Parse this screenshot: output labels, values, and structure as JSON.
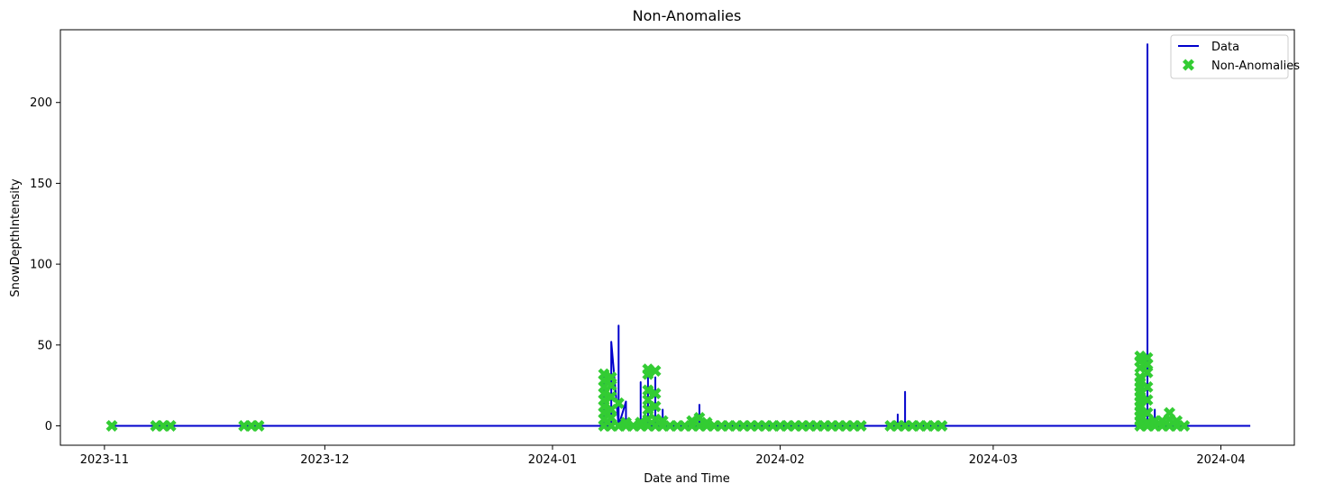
{
  "chart_data": {
    "type": "line",
    "title": "Non-Anomalies",
    "xlabel": "Date and Time",
    "ylabel": "SnowDepthIntensity",
    "x_axis_type": "date",
    "xlim": [
      "2023-10-26",
      "2024-04-11"
    ],
    "ylim": [
      -12,
      245
    ],
    "x_ticks": [
      "2023-11",
      "2023-12",
      "2024-01",
      "2024-02",
      "2024-03",
      "2024-04"
    ],
    "y_ticks": [
      0,
      50,
      100,
      150,
      200
    ],
    "grid": false,
    "legend": {
      "position": "top-right",
      "entries": [
        "Data",
        "Non-Anomalies"
      ]
    },
    "series": [
      {
        "name": "Data",
        "kind": "line",
        "color": "#0000cc",
        "points": [
          [
            "2023-11-02",
            0
          ],
          [
            "2024-01-08",
            0
          ],
          [
            "2024-01-08",
            30
          ],
          [
            "2024-01-08",
            0
          ],
          [
            "2024-01-09",
            0
          ],
          [
            "2024-01-09",
            35
          ],
          [
            "2024-01-09",
            0
          ],
          [
            "2024-01-09",
            45
          ],
          [
            "2024-01-09",
            0
          ],
          [
            "2024-01-09",
            52
          ],
          [
            "2024-01-10",
            0
          ],
          [
            "2024-01-10",
            62
          ],
          [
            "2024-01-10",
            0
          ],
          [
            "2024-01-10",
            45
          ],
          [
            "2024-01-10",
            0
          ],
          [
            "2024-01-11",
            15
          ],
          [
            "2024-01-11",
            0
          ],
          [
            "2024-01-13",
            0
          ],
          [
            "2024-01-13",
            27
          ],
          [
            "2024-01-13",
            0
          ],
          [
            "2024-01-14",
            0
          ],
          [
            "2024-01-14",
            35
          ],
          [
            "2024-01-14",
            0
          ],
          [
            "2024-01-15",
            0
          ],
          [
            "2024-01-15",
            30
          ],
          [
            "2024-01-15",
            0
          ],
          [
            "2024-01-16",
            0
          ],
          [
            "2024-01-16",
            10
          ],
          [
            "2024-01-16",
            0
          ],
          [
            "2024-01-21",
            0
          ],
          [
            "2024-01-21",
            13
          ],
          [
            "2024-01-21",
            0
          ],
          [
            "2024-02-17",
            0
          ],
          [
            "2024-02-17",
            7
          ],
          [
            "2024-02-17",
            0
          ],
          [
            "2024-02-18",
            0
          ],
          [
            "2024-02-18",
            21
          ],
          [
            "2024-02-18",
            0
          ],
          [
            "2024-03-21",
            0
          ],
          [
            "2024-03-21",
            25
          ],
          [
            "2024-03-21",
            0
          ],
          [
            "2024-03-22",
            0
          ],
          [
            "2024-03-22",
            236
          ],
          [
            "2024-03-22",
            0
          ],
          [
            "2024-03-23",
            0
          ],
          [
            "2024-03-23",
            10
          ],
          [
            "2024-03-23",
            0
          ],
          [
            "2024-04-05",
            0
          ]
        ]
      },
      {
        "name": "Non-Anomalies",
        "kind": "scatter",
        "marker": "X",
        "color": "#33cc33",
        "points": [
          [
            "2023-11-02",
            0
          ],
          [
            "2023-11-08",
            0
          ],
          [
            "2023-11-09",
            0
          ],
          [
            "2023-11-10",
            0
          ],
          [
            "2023-11-20",
            0
          ],
          [
            "2023-11-21",
            0
          ],
          [
            "2023-11-22",
            0
          ],
          [
            "2024-01-08",
            0
          ],
          [
            "2024-01-08",
            4
          ],
          [
            "2024-01-08",
            8
          ],
          [
            "2024-01-08",
            12
          ],
          [
            "2024-01-08",
            16
          ],
          [
            "2024-01-08",
            20
          ],
          [
            "2024-01-08",
            24
          ],
          [
            "2024-01-08",
            28
          ],
          [
            "2024-01-08",
            32
          ],
          [
            "2024-01-09",
            0
          ],
          [
            "2024-01-09",
            5
          ],
          [
            "2024-01-09",
            10
          ],
          [
            "2024-01-09",
            18
          ],
          [
            "2024-01-09",
            25
          ],
          [
            "2024-01-09",
            30
          ],
          [
            "2024-01-10",
            0
          ],
          [
            "2024-01-10",
            14
          ],
          [
            "2024-01-11",
            0
          ],
          [
            "2024-01-11",
            2
          ],
          [
            "2024-01-12",
            0
          ],
          [
            "2024-01-13",
            0
          ],
          [
            "2024-01-13",
            2
          ],
          [
            "2024-01-14",
            0
          ],
          [
            "2024-01-14",
            4
          ],
          [
            "2024-01-14",
            10
          ],
          [
            "2024-01-14",
            16
          ],
          [
            "2024-01-14",
            22
          ],
          [
            "2024-01-14",
            32
          ],
          [
            "2024-01-14",
            35
          ],
          [
            "2024-01-15",
            0
          ],
          [
            "2024-01-15",
            4
          ],
          [
            "2024-01-15",
            12
          ],
          [
            "2024-01-15",
            20
          ],
          [
            "2024-01-15",
            34
          ],
          [
            "2024-01-16",
            0
          ],
          [
            "2024-01-16",
            3
          ],
          [
            "2024-01-17",
            0
          ],
          [
            "2024-01-18",
            0
          ],
          [
            "2024-01-19",
            0
          ],
          [
            "2024-01-20",
            0
          ],
          [
            "2024-01-20",
            3
          ],
          [
            "2024-01-21",
            0
          ],
          [
            "2024-01-21",
            5
          ],
          [
            "2024-01-22",
            0
          ],
          [
            "2024-01-22",
            2
          ],
          [
            "2024-01-23",
            0
          ],
          [
            "2024-01-24",
            0
          ],
          [
            "2024-01-25",
            0
          ],
          [
            "2024-01-26",
            0
          ],
          [
            "2024-01-27",
            0
          ],
          [
            "2024-01-28",
            0
          ],
          [
            "2024-01-29",
            0
          ],
          [
            "2024-01-30",
            0
          ],
          [
            "2024-01-31",
            0
          ],
          [
            "2024-02-01",
            0
          ],
          [
            "2024-02-02",
            0
          ],
          [
            "2024-02-03",
            0
          ],
          [
            "2024-02-04",
            0
          ],
          [
            "2024-02-05",
            0
          ],
          [
            "2024-02-06",
            0
          ],
          [
            "2024-02-07",
            0
          ],
          [
            "2024-02-08",
            0
          ],
          [
            "2024-02-09",
            0
          ],
          [
            "2024-02-10",
            0
          ],
          [
            "2024-02-11",
            0
          ],
          [
            "2024-02-12",
            0
          ],
          [
            "2024-02-16",
            0
          ],
          [
            "2024-02-17",
            0
          ],
          [
            "2024-02-18",
            0
          ],
          [
            "2024-02-19",
            0
          ],
          [
            "2024-02-20",
            0
          ],
          [
            "2024-02-21",
            0
          ],
          [
            "2024-02-22",
            0
          ],
          [
            "2024-02-23",
            0
          ],
          [
            "2024-03-21",
            0
          ],
          [
            "2024-03-21",
            3
          ],
          [
            "2024-03-21",
            6
          ],
          [
            "2024-03-21",
            9
          ],
          [
            "2024-03-21",
            12
          ],
          [
            "2024-03-21",
            15
          ],
          [
            "2024-03-21",
            18
          ],
          [
            "2024-03-21",
            21
          ],
          [
            "2024-03-21",
            24
          ],
          [
            "2024-03-21",
            27
          ],
          [
            "2024-03-21",
            30
          ],
          [
            "2024-03-21",
            36
          ],
          [
            "2024-03-21",
            40
          ],
          [
            "2024-03-21",
            43
          ],
          [
            "2024-03-22",
            0
          ],
          [
            "2024-03-22",
            2
          ],
          [
            "2024-03-22",
            8
          ],
          [
            "2024-03-22",
            16
          ],
          [
            "2024-03-22",
            24
          ],
          [
            "2024-03-22",
            33
          ],
          [
            "2024-03-22",
            38
          ],
          [
            "2024-03-22",
            42
          ],
          [
            "2024-03-23",
            0
          ],
          [
            "2024-03-23",
            3
          ],
          [
            "2024-03-24",
            0
          ],
          [
            "2024-03-24",
            3
          ],
          [
            "2024-03-25",
            0
          ],
          [
            "2024-03-25",
            4
          ],
          [
            "2024-03-25",
            8
          ],
          [
            "2024-03-26",
            0
          ],
          [
            "2024-03-26",
            3
          ],
          [
            "2024-03-27",
            0
          ]
        ]
      }
    ]
  }
}
